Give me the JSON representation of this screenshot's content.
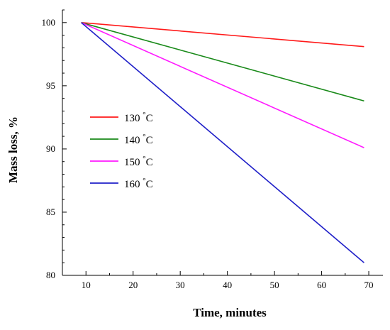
{
  "chart_data": {
    "type": "line",
    "xlabel": "Time, minutes",
    "ylabel": "Mass loss, %",
    "xlim": [
      5,
      73
    ],
    "ylim": [
      80,
      101
    ],
    "xticks": [
      10,
      20,
      30,
      40,
      50,
      60,
      70
    ],
    "yticks": [
      80,
      85,
      90,
      95,
      100
    ],
    "xtick_labels": [
      "10",
      "20",
      "30",
      "40",
      "50",
      "60",
      "70"
    ],
    "ytick_labels": [
      "80",
      "85",
      "90",
      "95",
      "100"
    ],
    "grid": false,
    "legend_position": "middle-left",
    "series": [
      {
        "name": "130 °C",
        "color": "#ff1a1a",
        "x": [
          9,
          69
        ],
        "y": [
          100,
          98.1
        ]
      },
      {
        "name": "140 °C",
        "color": "#1a8a1a",
        "x": [
          9,
          69
        ],
        "y": [
          100,
          93.8
        ]
      },
      {
        "name": "150 °C",
        "color": "#ff1aff",
        "x": [
          9,
          69
        ],
        "y": [
          100,
          90.1
        ]
      },
      {
        "name": "160 °C",
        "color": "#1f1fc8",
        "x": [
          9,
          69
        ],
        "y": [
          100,
          81.0
        ]
      }
    ]
  }
}
